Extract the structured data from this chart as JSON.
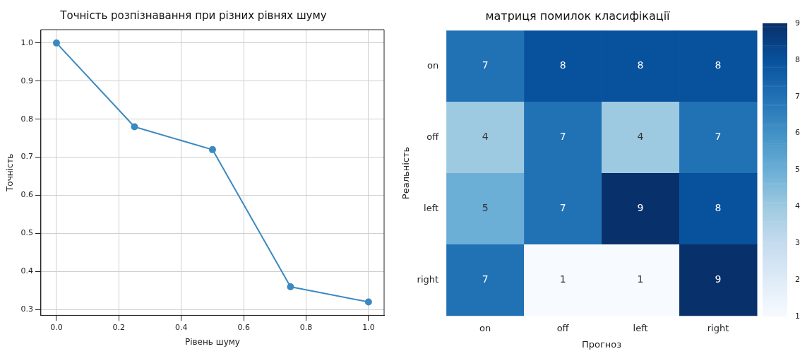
{
  "chart_data": [
    {
      "type": "line",
      "title": "Точність розпізнавання при різних рівнях шуму",
      "xlabel": "Рівень шуму",
      "ylabel": "Точність",
      "x": [
        0,
        0.25,
        0.5,
        0.75,
        1.0
      ],
      "values": [
        1.0,
        0.78,
        0.72,
        0.36,
        0.32
      ],
      "color": "#3b89c0",
      "xlim": [
        -0.05,
        1.05
      ],
      "xticks": [
        {
          "value": 0,
          "label": "0.0"
        },
        0.2,
        0.4,
        0.6,
        0.8,
        {
          "value": 1,
          "label": "1.0"
        }
      ],
      "ylim": [
        0.285,
        1.035
      ],
      "yticks": [
        0.3,
        0.4,
        0.5,
        0.6,
        0.7,
        0.8,
        0.9,
        {
          "value": 1,
          "label": "1.0"
        }
      ],
      "grid": true,
      "marker": "circle"
    },
    {
      "type": "heatmap",
      "title": "матриця помилок класифікації",
      "xlabel": "Прогноз",
      "ylabel": "Реальність",
      "categories": [
        "on",
        "off",
        "left",
        "right"
      ],
      "y_categories": [
        "on",
        "off",
        "left",
        "right"
      ],
      "cells": [
        [
          7,
          8,
          8,
          8
        ],
        [
          4,
          7,
          4,
          7
        ],
        [
          5,
          7,
          9,
          8
        ],
        [
          7,
          1,
          1,
          9
        ]
      ],
      "clim": [
        1,
        9
      ],
      "cticks": [
        1,
        2,
        3,
        4,
        5,
        6,
        7,
        8,
        9
      ],
      "data_labels": true
    }
  ]
}
